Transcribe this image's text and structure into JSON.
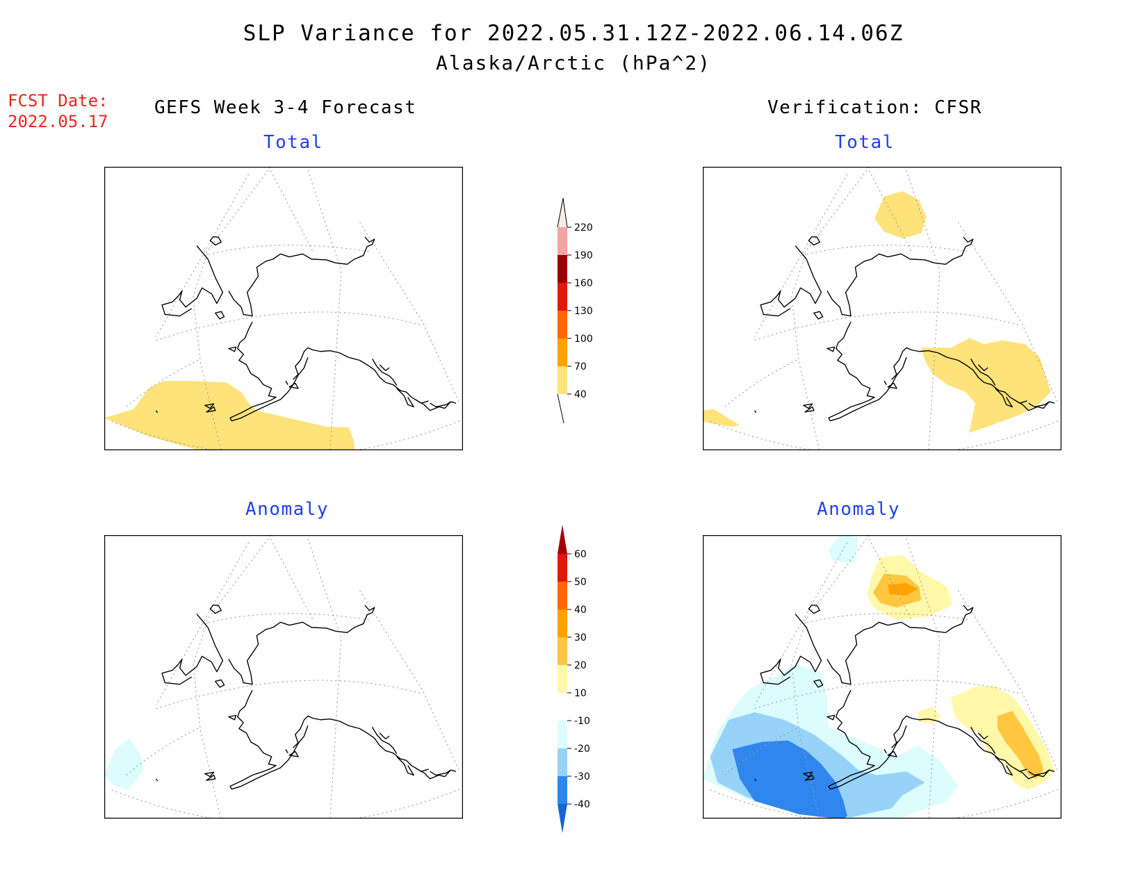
{
  "header": {
    "title": "SLP Variance for 2022.05.31.12Z-2022.06.14.06Z",
    "subtitle": "Alaska/Arctic (hPa^2)"
  },
  "forecast_date": {
    "label": "FCST Date:",
    "value": "2022.05.17"
  },
  "columns": {
    "left": "GEFS Week 3-4 Forecast",
    "right": "Verification: CFSR"
  },
  "panels": {
    "top_left": "Total",
    "top_right": "Total",
    "bottom_left": "Anomaly",
    "bottom_right": "Anomaly"
  },
  "total_colorbar": {
    "ticks": [
      "220",
      "190",
      "160",
      "130",
      "100",
      "70",
      "40"
    ],
    "colors": [
      "#fde9e6",
      "#f4a3a3",
      "#9b0000",
      "#dd1a0d",
      "#ff6900",
      "#ffa202",
      "#fee27a"
    ]
  },
  "anomaly_colorbar": {
    "ticks": [
      "60",
      "50",
      "40",
      "30",
      "20",
      "10",
      "-10",
      "-20",
      "-30",
      "-40"
    ],
    "colors": [
      "#a30000",
      "#dd1a0d",
      "#ff6900",
      "#ffa202",
      "#ffc640",
      "#fff8a8",
      "#ffffff",
      "#dcfcfd",
      "#97d2f9",
      "#2f86ee",
      "#1565d8"
    ]
  },
  "colors": {
    "title_text": "#000000",
    "fcst_text": "#e8261f",
    "panel_title": "#1f3ff0"
  }
}
